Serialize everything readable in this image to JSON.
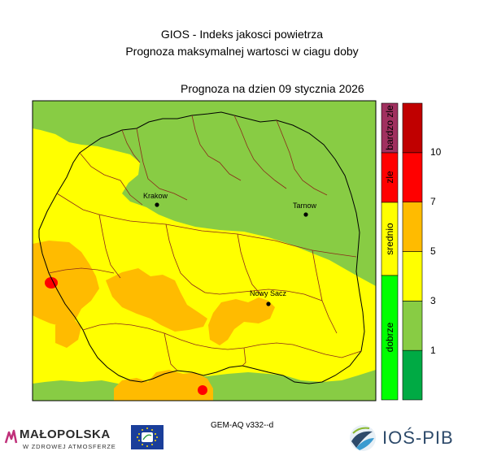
{
  "header": {
    "title_line1": "GIOS - Indeks jakosci powietrza",
    "title_line2": "Prognoza maksymalnej wartosci w ciagu doby",
    "forecast_date": "Prognoza na dzien  09 stycznia 2026"
  },
  "cities": [
    {
      "name": "Krakow"
    },
    {
      "name": "Tarnow"
    },
    {
      "name": "Nowy Sacz"
    }
  ],
  "category_bar": [
    {
      "label": "bardzo zle",
      "color": "#a0305f"
    },
    {
      "label": "zle",
      "color": "#ff0000"
    },
    {
      "label": "srednio",
      "color": "#ffff00"
    },
    {
      "label": "dobrze",
      "color": "#00ff00"
    }
  ],
  "scale_bar": {
    "colors": [
      "#00aa44",
      "#88cc44",
      "#ffff00",
      "#ffbb00",
      "#ff0000",
      "#c00000"
    ],
    "tick_labels": [
      "1",
      "3",
      "5",
      "7",
      "10"
    ]
  },
  "footer": {
    "model": "GEM-AQ v332--d",
    "logo_malopolska": "MAŁOPOLSKA",
    "logo_malopolska_sub": "W ZDROWEJ ATMOSFERZE",
    "logo_ios": "IOŚ-PIB"
  },
  "colors": {
    "good": "#88cc44",
    "moderate": "#ffff00",
    "elevated": "#ffbb00",
    "high": "#ff0000"
  }
}
